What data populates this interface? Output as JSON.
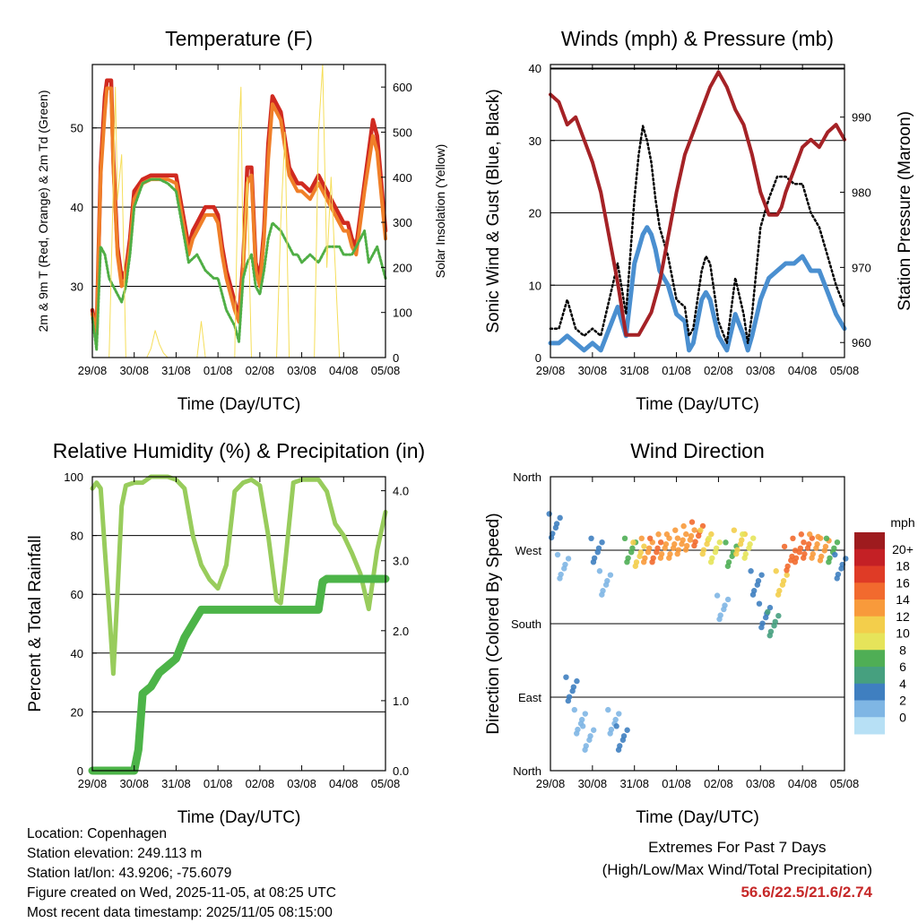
{
  "colors": {
    "temp2m": "#d02a20",
    "temp9m": "#f07f28",
    "dewpoint": "#4fae45",
    "solar": "#f5de5a",
    "wind": "#4a8fd0",
    "gust": "#000000",
    "pressure": "#a52226",
    "rh": "#98cc5c",
    "precip": "#4cb448",
    "extremes": "#c62828"
  },
  "x_ticks": [
    "29/08",
    "30/08",
    "31/08",
    "01/08",
    "02/08",
    "03/08",
    "04/08",
    "05/08"
  ],
  "chart_data": [
    {
      "id": "temperature",
      "type": "line",
      "title": "Temperature (F)",
      "xlabel": "Time (Day/UTC)",
      "ylabel": "2m & 9m T (Red, Orange) & 2m Td (Green)",
      "ylabel_right": "Solar Insolation (Yellow)",
      "x_range": [
        0,
        7
      ],
      "ylim": [
        21,
        58
      ],
      "ylim_right": [
        0,
        650
      ],
      "y_ticks": [
        "30",
        "40",
        "50"
      ],
      "y_tick_values": [
        30,
        40,
        50
      ],
      "y_ticks_right": [
        "0",
        "100",
        "200",
        "300",
        "400",
        "500",
        "600"
      ],
      "y_tick_values_right": [
        0,
        100,
        200,
        300,
        400,
        500,
        600
      ],
      "series": [
        {
          "name": "2m T",
          "x": [
            0,
            0.1,
            0.2,
            0.3,
            0.35,
            0.45,
            0.5,
            0.6,
            0.7,
            0.8,
            0.9,
            1.0,
            1.2,
            1.4,
            1.5,
            1.6,
            1.8,
            2.0,
            2.2,
            2.3,
            2.4,
            2.5,
            2.7,
            2.9,
            3.0,
            3.1,
            3.2,
            3.4,
            3.5,
            3.6,
            3.7,
            3.8,
            3.9,
            4.0,
            4.1,
            4.2,
            4.3,
            4.5,
            4.7,
            4.8,
            4.9,
            5.0,
            5.2,
            5.4,
            5.6,
            5.8,
            5.9,
            6.0,
            6.1,
            6.2,
            6.3,
            6.5,
            6.7,
            6.8,
            7.0
          ],
          "values": [
            27,
            24,
            45,
            54,
            56,
            56,
            46,
            35,
            31,
            32,
            36,
            42,
            43.5,
            44,
            44,
            44,
            44,
            44,
            38,
            35,
            37,
            38,
            40,
            40,
            39,
            35,
            32,
            28,
            26,
            33,
            45,
            45,
            33,
            31,
            37,
            48,
            54,
            52,
            45,
            44,
            43,
            43,
            42,
            44,
            42,
            40,
            39,
            38,
            38,
            36,
            35,
            43,
            51,
            49,
            37
          ]
        },
        {
          "name": "9m T",
          "x": [
            0,
            0.1,
            0.2,
            0.3,
            0.35,
            0.45,
            0.5,
            0.6,
            0.7,
            0.8,
            0.9,
            1.0,
            1.2,
            1.4,
            1.5,
            1.6,
            1.8,
            2.0,
            2.2,
            2.3,
            2.4,
            2.5,
            2.7,
            2.9,
            3.0,
            3.1,
            3.2,
            3.4,
            3.5,
            3.6,
            3.7,
            3.8,
            3.9,
            4.0,
            4.1,
            4.2,
            4.3,
            4.5,
            4.7,
            4.8,
            4.9,
            5.0,
            5.2,
            5.4,
            5.6,
            5.8,
            5.9,
            6.0,
            6.1,
            6.2,
            6.3,
            6.5,
            6.7,
            6.8,
            7.0
          ],
          "values": [
            26.5,
            24,
            44,
            52,
            55,
            55,
            45,
            34,
            30,
            31,
            35,
            41,
            43,
            43.5,
            43.5,
            43.5,
            43.5,
            43,
            37,
            34,
            36,
            37,
            39,
            39,
            38,
            34,
            31,
            27,
            25.5,
            32,
            43,
            44,
            32,
            30,
            36,
            46,
            53,
            51,
            44,
            43,
            42,
            42,
            41,
            43,
            41,
            39,
            38,
            37,
            37,
            35,
            34,
            42,
            49,
            47,
            36
          ]
        },
        {
          "name": "2m Td",
          "x": [
            0,
            0.1,
            0.2,
            0.3,
            0.4,
            0.5,
            0.6,
            0.7,
            0.8,
            0.9,
            1.0,
            1.2,
            1.4,
            1.6,
            1.8,
            2.0,
            2.2,
            2.3,
            2.5,
            2.7,
            2.9,
            3.0,
            3.1,
            3.2,
            3.4,
            3.5,
            3.6,
            3.7,
            3.8,
            3.9,
            4.0,
            4.1,
            4.2,
            4.3,
            4.5,
            4.7,
            4.8,
            4.9,
            5.0,
            5.2,
            5.4,
            5.6,
            5.8,
            5.9,
            6.0,
            6.2,
            6.4,
            6.5,
            6.6,
            6.8,
            7.0
          ],
          "values": [
            26,
            22,
            35,
            34,
            31,
            30,
            29,
            28,
            30,
            34,
            40,
            43,
            43.5,
            43.5,
            43,
            42,
            36,
            33,
            34,
            32,
            31,
            31,
            29,
            27,
            25,
            23,
            31,
            33,
            34,
            30,
            29,
            32,
            36,
            38,
            37,
            35,
            34,
            34,
            33,
            34,
            33,
            35,
            35,
            35,
            34,
            34,
            36,
            37,
            33,
            35,
            31
          ]
        },
        {
          "name": "Solar Insolation",
          "axis": "right",
          "x": [
            0.4,
            0.5,
            0.55,
            0.6,
            0.7,
            0.8,
            1.3,
            1.4,
            1.5,
            1.6,
            1.7,
            1.8,
            1.9,
            2.0,
            2.5,
            2.6,
            2.7,
            3.4,
            3.5,
            3.55,
            3.6,
            3.7,
            3.8,
            4.4,
            4.5,
            4.6,
            4.7,
            5.3,
            5.4,
            5.5,
            5.6,
            5.7,
            5.9,
            6.0
          ],
          "values": [
            0,
            380,
            600,
            350,
            450,
            0,
            0,
            20,
            60,
            30,
            10,
            0,
            0,
            0,
            0,
            80,
            0,
            0,
            500,
            600,
            200,
            400,
            0,
            0,
            300,
            500,
            0,
            0,
            500,
            650,
            200,
            400,
            0,
            0
          ]
        }
      ]
    },
    {
      "id": "winds",
      "type": "line",
      "title": "Winds (mph) & Pressure (mb)",
      "xlabel": "Time (Day/UTC)",
      "ylabel": "Sonic Wind & Gust (Blue, Black)",
      "ylabel_right": "Station Pressure (Maroon)",
      "x_range": [
        0,
        7
      ],
      "ylim": [
        0,
        40.5
      ],
      "ylim_right": [
        958,
        997
      ],
      "y_ticks": [
        "0",
        "10",
        "20",
        "30",
        "40"
      ],
      "y_tick_values": [
        0,
        10,
        20,
        30,
        40
      ],
      "y_ticks_right": [
        "960",
        "970",
        "980",
        "990"
      ],
      "y_tick_values_right": [
        960,
        970,
        980,
        990
      ],
      "series": [
        {
          "name": "Sonic Wind",
          "x": [
            0,
            0.2,
            0.4,
            0.6,
            0.8,
            1.0,
            1.2,
            1.4,
            1.6,
            1.8,
            2.0,
            2.1,
            2.2,
            2.3,
            2.4,
            2.5,
            2.6,
            2.8,
            3.0,
            3.2,
            3.3,
            3.4,
            3.6,
            3.7,
            3.8,
            4.0,
            4.2,
            4.4,
            4.6,
            4.7,
            4.8,
            5.0,
            5.2,
            5.4,
            5.6,
            5.8,
            6.0,
            6.2,
            6.4,
            6.6,
            6.8,
            7.0
          ],
          "values": [
            2,
            2,
            3,
            2,
            1,
            2,
            1,
            4,
            7,
            3,
            13,
            15,
            17,
            18,
            17,
            15,
            12,
            10,
            6,
            5,
            1,
            2,
            8,
            9,
            8,
            3,
            1,
            6,
            3,
            1,
            3,
            8,
            11,
            12,
            13,
            13,
            14,
            12,
            12,
            9,
            6,
            4
          ]
        },
        {
          "name": "Gust",
          "x": [
            0,
            0.2,
            0.4,
            0.6,
            0.8,
            1.0,
            1.2,
            1.4,
            1.6,
            1.8,
            2.0,
            2.1,
            2.2,
            2.3,
            2.4,
            2.5,
            2.6,
            2.8,
            3.0,
            3.2,
            3.3,
            3.4,
            3.6,
            3.7,
            3.8,
            4.0,
            4.2,
            4.4,
            4.6,
            4.7,
            4.8,
            5.0,
            5.2,
            5.4,
            5.6,
            5.8,
            6.0,
            6.2,
            6.4,
            6.6,
            6.8,
            7.0
          ],
          "values": [
            4,
            4,
            8,
            4,
            3,
            4,
            3,
            8,
            13,
            6,
            22,
            28,
            32,
            30,
            27,
            22,
            18,
            14,
            8,
            7,
            3,
            4,
            12,
            14,
            13,
            5,
            2,
            11,
            6,
            2,
            6,
            18,
            22,
            25,
            25,
            24,
            24,
            20,
            18,
            14,
            10,
            7
          ]
        },
        {
          "name": "Station Pressure",
          "axis": "right",
          "x": [
            0,
            0.2,
            0.4,
            0.6,
            0.8,
            1.0,
            1.2,
            1.4,
            1.6,
            1.8,
            2.0,
            2.1,
            2.2,
            2.4,
            2.6,
            2.8,
            3.0,
            3.2,
            3.4,
            3.6,
            3.8,
            4.0,
            4.2,
            4.4,
            4.6,
            4.8,
            5.0,
            5.2,
            5.4,
            5.5,
            5.6,
            5.8,
            6.0,
            6.2,
            6.4,
            6.6,
            6.8,
            7.0
          ],
          "values": [
            993,
            992,
            989,
            990,
            987,
            984,
            980,
            974,
            968,
            961,
            961,
            961,
            962,
            964,
            968,
            974,
            980,
            985,
            988,
            991,
            994,
            996,
            994,
            991,
            989,
            985,
            980,
            977,
            977,
            978,
            980,
            983,
            986,
            987,
            986,
            988,
            989,
            987
          ]
        }
      ]
    },
    {
      "id": "humidity",
      "type": "line",
      "title": "Relative Humidity (%) & Precipitation (in)",
      "xlabel": "Time (Day/UTC)",
      "ylabel": "Percent & Total Rainfall",
      "x_range": [
        0,
        7
      ],
      "ylim": [
        0,
        100
      ],
      "ylim_right": [
        0,
        4.2
      ],
      "y_ticks": [
        "0",
        "20",
        "40",
        "60",
        "80",
        "100"
      ],
      "y_tick_values": [
        0,
        20,
        40,
        60,
        80,
        100
      ],
      "y_ticks_right": [
        "0.0",
        "1.0",
        "2.0",
        "3.0",
        "4.0"
      ],
      "y_tick_values_right": [
        0,
        1,
        2,
        3,
        4
      ],
      "series": [
        {
          "name": "Relative Humidity",
          "x": [
            0,
            0.1,
            0.2,
            0.3,
            0.4,
            0.5,
            0.6,
            0.7,
            0.8,
            1.0,
            1.2,
            1.4,
            1.6,
            1.8,
            2.0,
            2.2,
            2.4,
            2.6,
            2.8,
            3.0,
            3.2,
            3.4,
            3.6,
            3.8,
            4.0,
            4.2,
            4.4,
            4.5,
            4.6,
            4.8,
            5.0,
            5.2,
            5.4,
            5.6,
            5.8,
            6.0,
            6.2,
            6.4,
            6.6,
            6.8,
            7.0
          ],
          "values": [
            96,
            98,
            96,
            75,
            55,
            33,
            60,
            90,
            97,
            98,
            98,
            100,
            100,
            100,
            99,
            96,
            80,
            70,
            65,
            62,
            70,
            95,
            98,
            99,
            97,
            80,
            58,
            57,
            70,
            98,
            99,
            99,
            99,
            95,
            84,
            80,
            74,
            67,
            55,
            75,
            88
          ]
        },
        {
          "name": "Total Rainfall",
          "axis": "right",
          "x": [
            0,
            0.5,
            1.0,
            1.1,
            1.2,
            1.4,
            1.6,
            1.8,
            2.0,
            2.2,
            2.4,
            2.6,
            2.8,
            3.0,
            3.5,
            4.0,
            5.0,
            5.4,
            5.5,
            5.6,
            6.0,
            7.0
          ],
          "values": [
            0,
            0,
            0,
            0.3,
            1.1,
            1.2,
            1.4,
            1.5,
            1.6,
            1.9,
            2.1,
            2.3,
            2.3,
            2.3,
            2.3,
            2.3,
            2.3,
            2.3,
            2.7,
            2.74,
            2.74,
            2.74
          ]
        }
      ]
    },
    {
      "id": "wind_direction",
      "type": "scatter",
      "title": "Wind Direction",
      "xlabel": "Time (Day/UTC)",
      "ylabel": "Direction (Colored By Speed)",
      "x_range": [
        0,
        7
      ],
      "ylim": [
        0,
        360
      ],
      "y_ticks": [
        "North",
        "East",
        "South",
        "West",
        "North"
      ],
      "y_tick_values": [
        0,
        90,
        180,
        270,
        360
      ],
      "colorbar_title": "mph",
      "colorbar_labels": [
        "20+",
        "18",
        "16",
        "14",
        "12",
        "10",
        "8",
        "6",
        "4",
        "2",
        "0"
      ],
      "colorbar_colors": [
        "#9e1b1e",
        "#c42025",
        "#df3b26",
        "#f26a2e",
        "#f89a3b",
        "#f3ce4b",
        "#e6e45a",
        "#4fae55",
        "#46a07f",
        "#3f7fc0",
        "#7fb6e4",
        "#b7e0f5"
      ],
      "series": [
        {
          "name": "Direction",
          "x": [
            0.1,
            0.3,
            0.5,
            0.7,
            0.9,
            1.1,
            1.3,
            1.5,
            1.7,
            1.9,
            2.1,
            2.3,
            2.5,
            2.7,
            2.9,
            3.1,
            3.3,
            3.5,
            3.7,
            3.9,
            4.1,
            4.3,
            4.5,
            4.7,
            4.9,
            5.1,
            5.3,
            5.5,
            5.7,
            5.9,
            6.1,
            6.3,
            6.5,
            6.7,
            6.9
          ],
          "values": [
            300,
            250,
            100,
            60,
            40,
            270,
            230,
            60,
            40,
            270,
            265,
            270,
            270,
            275,
            275,
            280,
            285,
            290,
            280,
            270,
            200,
            265,
            280,
            275,
            230,
            190,
            180,
            230,
            260,
            270,
            275,
            275,
            272,
            270,
            250
          ],
          "speeds": [
            3,
            2,
            4,
            1,
            2,
            3,
            1,
            2,
            3,
            8,
            12,
            14,
            15,
            14,
            13,
            13,
            14,
            16,
            12,
            10,
            2,
            8,
            12,
            10,
            3,
            4,
            6,
            12,
            16,
            16,
            15,
            14,
            13,
            8,
            3
          ]
        }
      ]
    }
  ],
  "info": {
    "location": "Location: Copenhagen",
    "elevation": "Station elevation: 249.113 m",
    "latlon": "Station lat/lon: 43.9206; -75.6079",
    "created": "Figure created on Wed, 2025-11-05, at 08:25 UTC",
    "recent": "Most recent data timestamp: 2025/11/05 08:15:00"
  },
  "extremes": {
    "title": "Extremes For Past 7 Days",
    "subtitle": "(High/Low/Max Wind/Total Precipitation)",
    "values": "56.6/22.5/21.6/2.74"
  }
}
